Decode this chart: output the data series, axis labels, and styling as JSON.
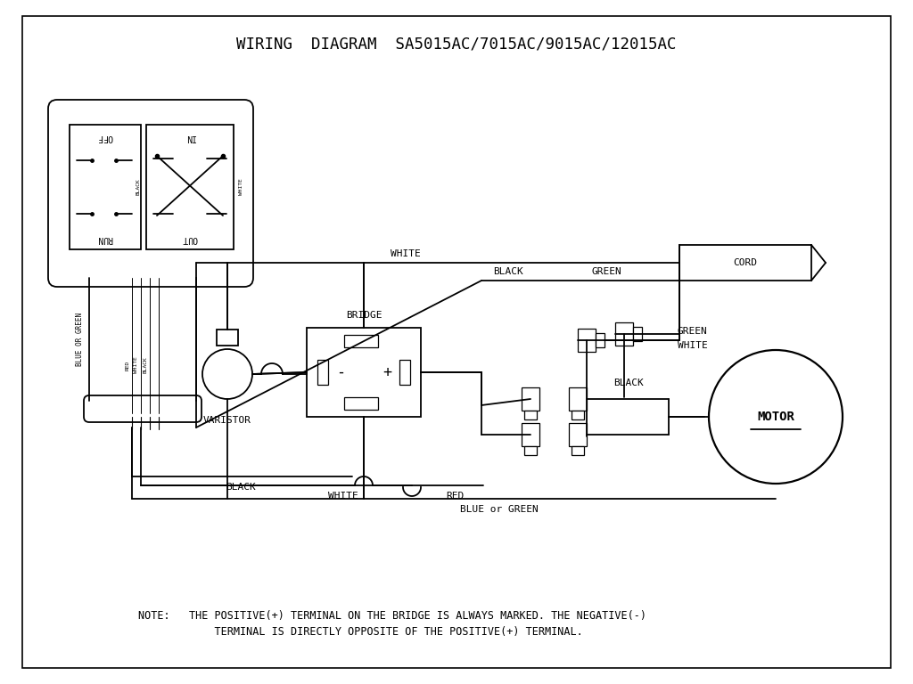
{
  "title": "WIRING  DIAGRAM  SA5015AC/7015AC/9015AC/12015AC",
  "note_line1": "NOTE:   THE POSITIVE(+) TERMINAL ON THE BRIDGE IS ALWAYS MARKED. THE NEGATIVE(-)",
  "note_line2": "            TERMINAL IS DIRECTLY OPPOSITE OF THE POSITIVE(+) TERMINAL.",
  "bg_color": "#ffffff",
  "fg_color": "#000000",
  "title_fontsize": 12.5,
  "note_fontsize": 8.5,
  "label_fontsize": 8.0
}
